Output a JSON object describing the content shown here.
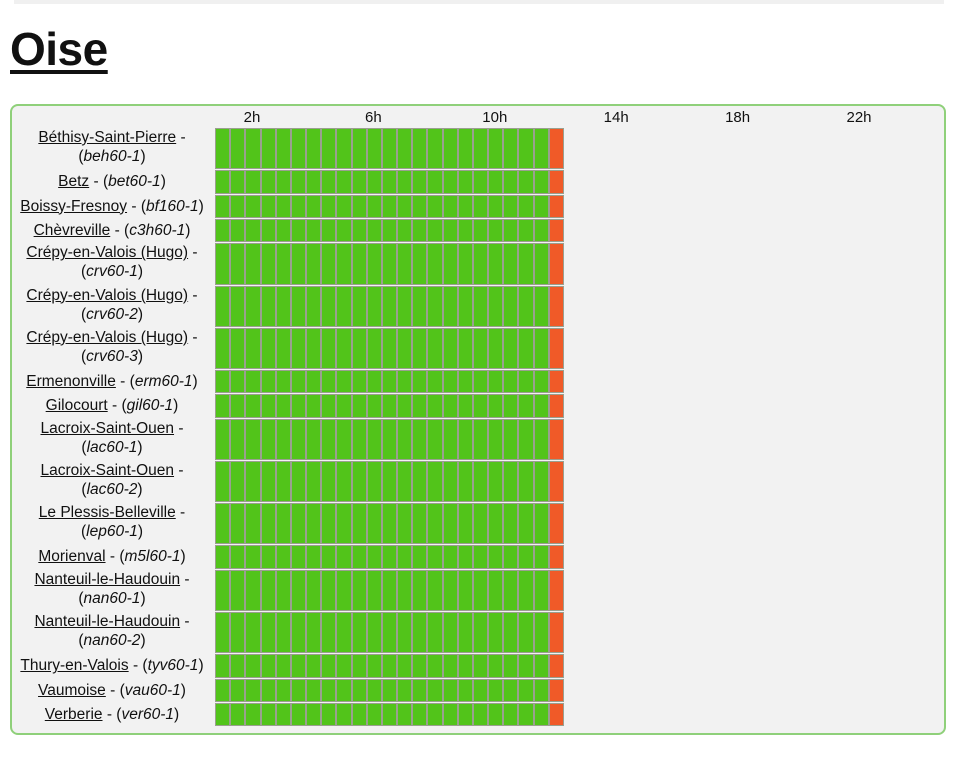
{
  "title": "Oise",
  "colors": {
    "ok": "#52c41a",
    "error": "#f05a28",
    "panel_border": "#8fd07a"
  },
  "hours": [
    "2h",
    "6h",
    "10h",
    "14h",
    "18h",
    "22h"
  ],
  "timeline": {
    "total_hours": 24,
    "filled_slots": 22,
    "ok_slots": 22,
    "error_slots": 1
  },
  "stations": [
    {
      "name": "Béthisy-Saint-Pierre",
      "code": "beh60-1",
      "two_line": true
    },
    {
      "name": "Betz",
      "code": "bet60-1",
      "two_line": false
    },
    {
      "name": "Boissy-Fresnoy",
      "code": "bf160-1",
      "two_line": false
    },
    {
      "name": "Chèvreville",
      "code": "c3h60-1",
      "two_line": false
    },
    {
      "name": "Crépy-en-Valois (Hugo)",
      "code": "crv60-1",
      "two_line": true
    },
    {
      "name": "Crépy-en-Valois (Hugo)",
      "code": "crv60-2",
      "two_line": true
    },
    {
      "name": "Crépy-en-Valois (Hugo)",
      "code": "crv60-3",
      "two_line": true
    },
    {
      "name": "Ermenonville",
      "code": "erm60-1",
      "two_line": false
    },
    {
      "name": "Gilocourt",
      "code": "gil60-1",
      "two_line": false
    },
    {
      "name": "Lacroix-Saint-Ouen",
      "code": "lac60-1",
      "two_line": true
    },
    {
      "name": "Lacroix-Saint-Ouen",
      "code": "lac60-2",
      "two_line": true
    },
    {
      "name": "Le Plessis-Belleville",
      "code": "lep60-1",
      "two_line": true
    },
    {
      "name": "Morienval",
      "code": "m5l60-1",
      "two_line": false
    },
    {
      "name": "Nanteuil-le-Haudouin",
      "code": "nan60-1",
      "two_line": true
    },
    {
      "name": "Nanteuil-le-Haudouin",
      "code": "nan60-2",
      "two_line": true
    },
    {
      "name": "Thury-en-Valois",
      "code": "tyv60-1",
      "two_line": false
    },
    {
      "name": "Vaumoise",
      "code": "vau60-1",
      "two_line": false
    },
    {
      "name": "Verberie",
      "code": "ver60-1",
      "two_line": false
    }
  ]
}
